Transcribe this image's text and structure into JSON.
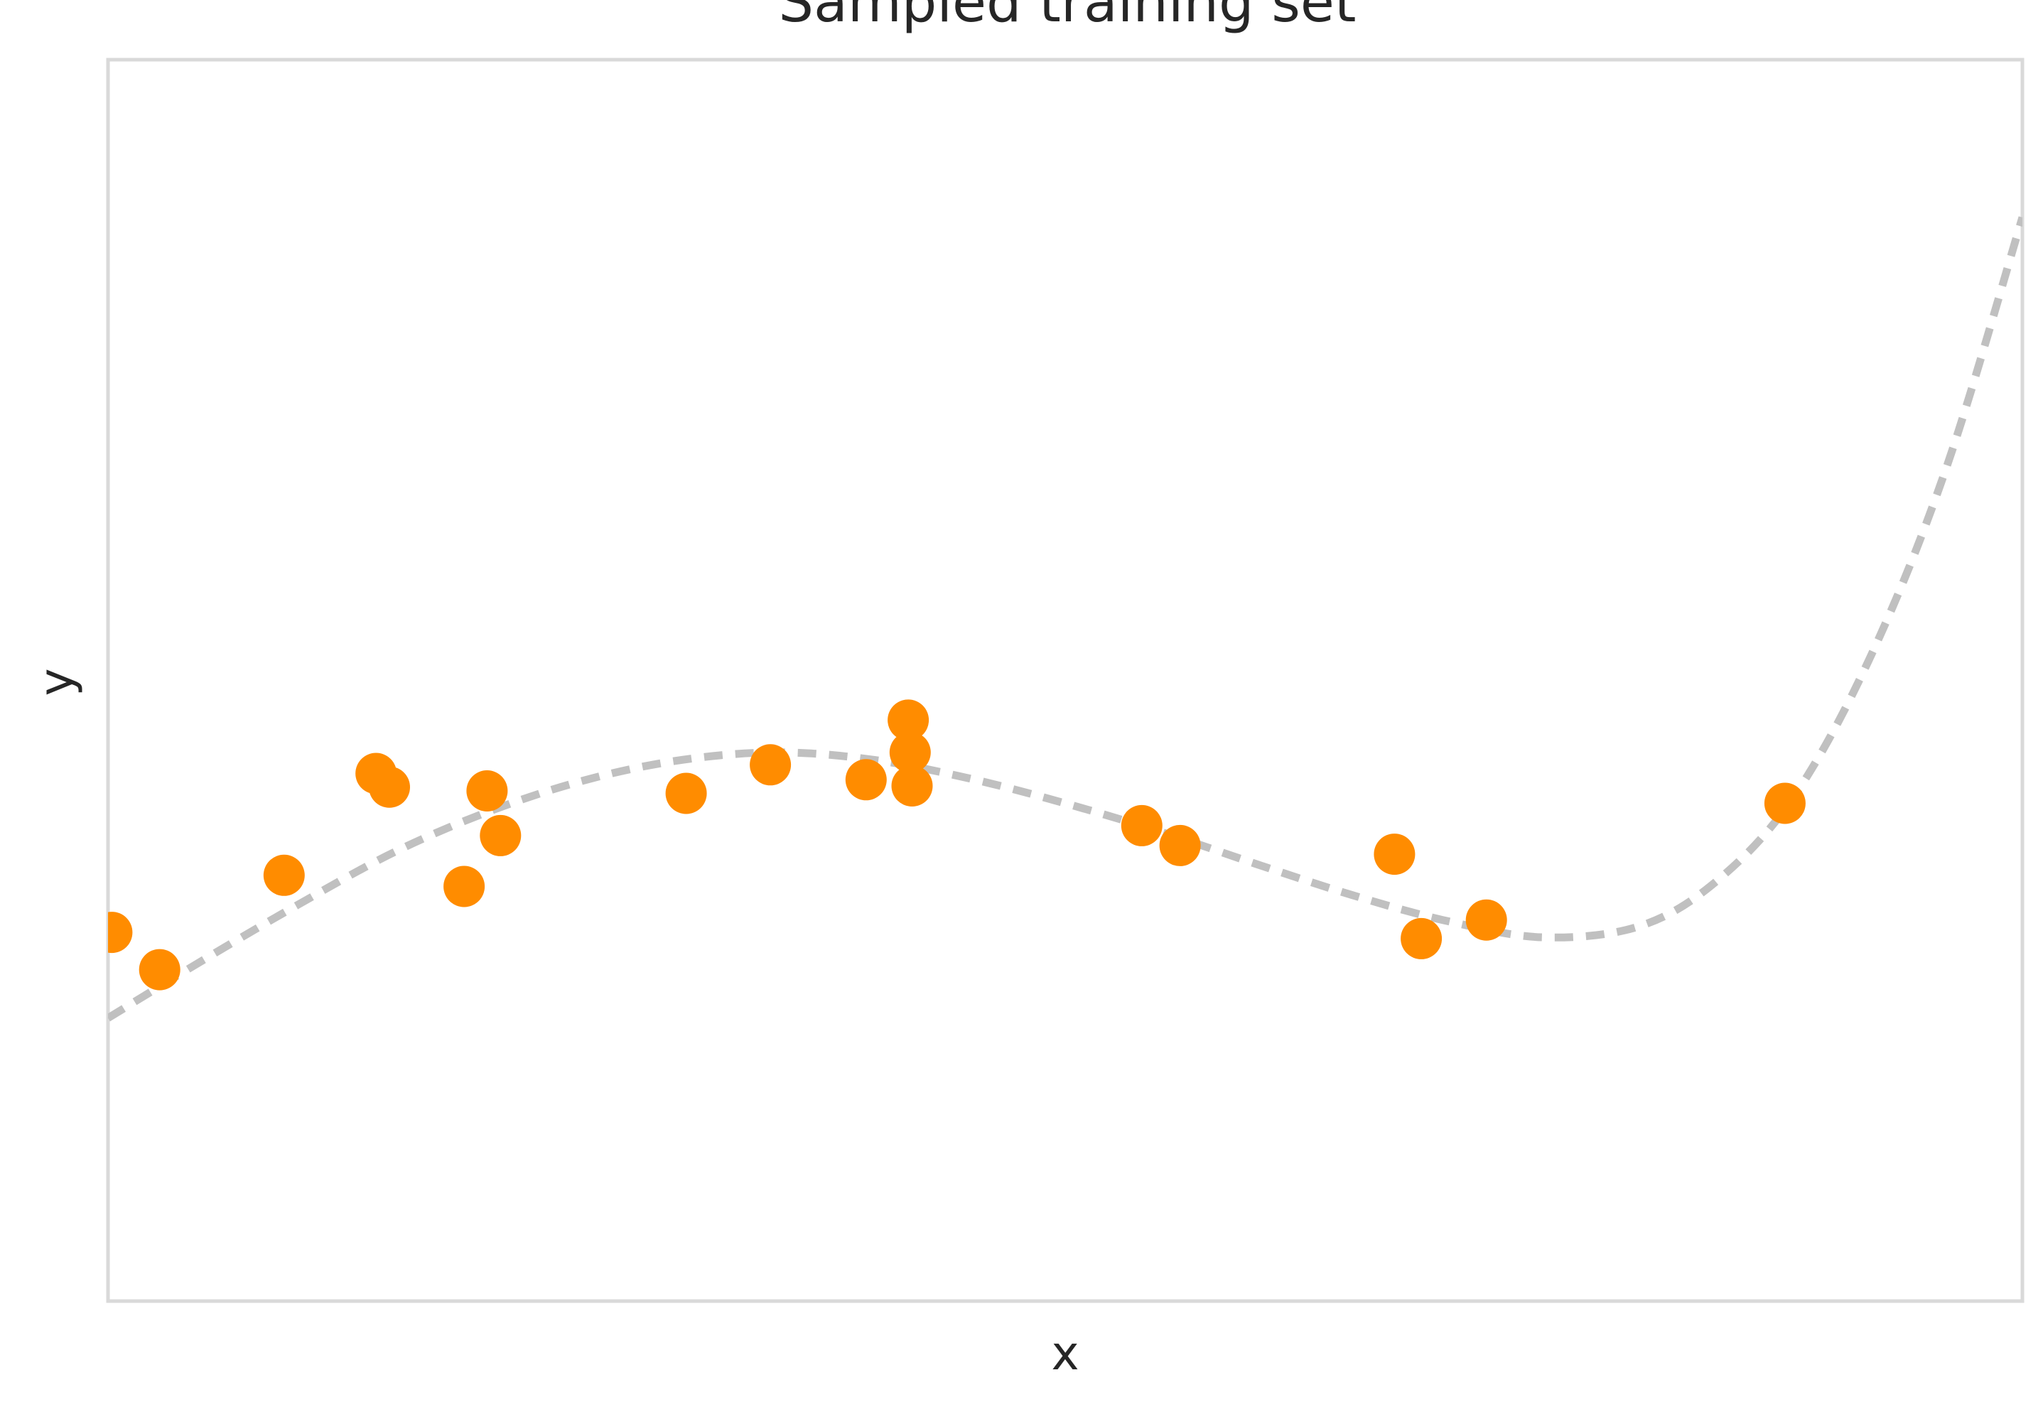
{
  "chart_data": {
    "type": "scatter",
    "title": "Sampled training set",
    "xlabel": "x",
    "ylabel": "y",
    "xlim": [
      0,
      10
    ],
    "ylim": [
      0,
      10
    ],
    "grid": false,
    "legend": "none",
    "point_color": "#ff8c00",
    "curve_color": "#c0c0c0",
    "series": [
      {
        "type": "scatter",
        "points": [
          [
            0.02,
            2.97
          ],
          [
            0.27,
            2.67
          ],
          [
            0.92,
            3.43
          ],
          [
            1.4,
            4.25
          ],
          [
            1.47,
            4.14
          ],
          [
            1.86,
            3.34
          ],
          [
            1.98,
            4.11
          ],
          [
            2.05,
            3.75
          ],
          [
            3.02,
            4.09
          ],
          [
            3.46,
            4.32
          ],
          [
            3.96,
            4.2
          ],
          [
            4.18,
            4.68
          ],
          [
            4.19,
            4.42
          ],
          [
            4.2,
            4.15
          ],
          [
            5.4,
            3.83
          ],
          [
            5.6,
            3.67
          ],
          [
            6.72,
            3.6
          ],
          [
            6.86,
            2.92
          ],
          [
            7.2,
            3.07
          ],
          [
            8.76,
            4.01
          ]
        ]
      },
      {
        "type": "line",
        "style": "dashed",
        "points": [
          [
            0.0,
            2.28
          ],
          [
            0.5,
            2.75
          ],
          [
            1.0,
            3.2
          ],
          [
            1.5,
            3.62
          ],
          [
            2.0,
            3.95
          ],
          [
            2.5,
            4.2
          ],
          [
            3.0,
            4.36
          ],
          [
            3.5,
            4.42
          ],
          [
            4.0,
            4.36
          ],
          [
            4.5,
            4.21
          ],
          [
            5.0,
            4.01
          ],
          [
            5.5,
            3.78
          ],
          [
            6.0,
            3.52
          ],
          [
            6.5,
            3.27
          ],
          [
            7.0,
            3.06
          ],
          [
            7.5,
            2.93
          ],
          [
            8.0,
            3.02
          ],
          [
            8.4,
            3.38
          ],
          [
            8.8,
            4.05
          ],
          [
            9.2,
            5.17
          ],
          [
            9.6,
            6.7
          ],
          [
            10.0,
            8.73
          ]
        ]
      }
    ]
  }
}
